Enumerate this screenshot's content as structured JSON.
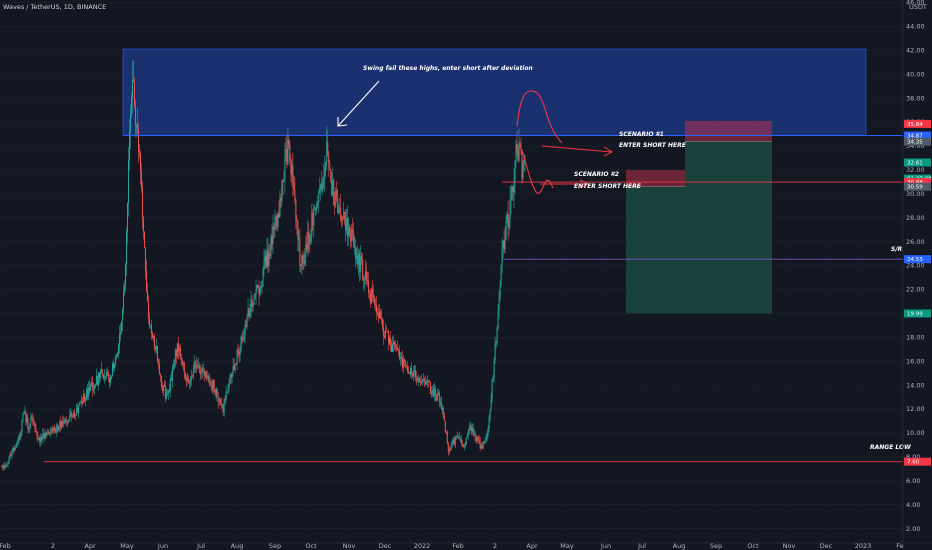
{
  "header": {
    "title": "Waves / TetherUS, 1D, BINANCE"
  },
  "chart_data": {
    "type": "candlestick",
    "currency": "USDT",
    "x_ticks": [
      "Feb",
      "2",
      "Apr",
      "May",
      "Jun",
      "Jul",
      "Aug",
      "Sep",
      "Oct",
      "Nov",
      "Dec",
      "2022",
      "Feb",
      "2",
      "Apr",
      "May",
      "Jun",
      "Jul",
      "Aug",
      "Sep",
      "Oct",
      "Nov",
      "Dec",
      "2023",
      "Fe"
    ],
    "y_ticks": [
      "2.00",
      "4.00",
      "6.00",
      "8.00",
      "10.00",
      "12.00",
      "14.00",
      "16.00",
      "18.00",
      "20.00",
      "22.00",
      "24.00",
      "26.00",
      "28.00",
      "30.00",
      "32.00",
      "34.00",
      "36.00",
      "38.00",
      "40.00",
      "42.00",
      "44.00",
      "46.00"
    ],
    "ylim": [
      0.8,
      46.2
    ],
    "price_path": [
      [
        0,
        7.2
      ],
      [
        6,
        7.6
      ],
      [
        12,
        8.8
      ],
      [
        18,
        10.0
      ],
      [
        22,
        12.0
      ],
      [
        26,
        10.5
      ],
      [
        30,
        11.2
      ],
      [
        36,
        9.2
      ],
      [
        42,
        9.8
      ],
      [
        48,
        10.2
      ],
      [
        56,
        10.5
      ],
      [
        64,
        11.0
      ],
      [
        70,
        11.5
      ],
      [
        76,
        12.0
      ],
      [
        84,
        13.2
      ],
      [
        92,
        14.0
      ],
      [
        100,
        15.0
      ],
      [
        108,
        14.5
      ],
      [
        114,
        16.0
      ],
      [
        120,
        19.0
      ],
      [
        124,
        24.0
      ],
      [
        128,
        36.0
      ],
      [
        131,
        40.5
      ],
      [
        134,
        36.0
      ],
      [
        138,
        33.0
      ],
      [
        142,
        27.0
      ],
      [
        146,
        21.0
      ],
      [
        150,
        18.0
      ],
      [
        156,
        16.5
      ],
      [
        160,
        14.0
      ],
      [
        166,
        13.0
      ],
      [
        172,
        15.5
      ],
      [
        176,
        17.5
      ],
      [
        182,
        15.5
      ],
      [
        188,
        14.0
      ],
      [
        194,
        16.0
      ],
      [
        200,
        15.0
      ],
      [
        206,
        14.5
      ],
      [
        212,
        14.0
      ],
      [
        218,
        12.8
      ],
      [
        222,
        12.0
      ],
      [
        228,
        14.5
      ],
      [
        234,
        16.0
      ],
      [
        240,
        17.5
      ],
      [
        246,
        19.5
      ],
      [
        252,
        21.0
      ],
      [
        258,
        22.0
      ],
      [
        264,
        24.0
      ],
      [
        270,
        25.5
      ],
      [
        276,
        28.0
      ],
      [
        280,
        30.0
      ],
      [
        284,
        33.0
      ],
      [
        288,
        34.0
      ],
      [
        292,
        31.0
      ],
      [
        296,
        27.0
      ],
      [
        300,
        24.0
      ],
      [
        304,
        25.0
      ],
      [
        310,
        27.0
      ],
      [
        316,
        30.0
      ],
      [
        322,
        31.0
      ],
      [
        326,
        34.0
      ],
      [
        330,
        31.0
      ],
      [
        336,
        29.0
      ],
      [
        342,
        28.0
      ],
      [
        348,
        27.0
      ],
      [
        354,
        25.5
      ],
      [
        360,
        24.0
      ],
      [
        366,
        22.5
      ],
      [
        372,
        21.0
      ],
      [
        378,
        20.0
      ],
      [
        384,
        18.5
      ],
      [
        390,
        17.5
      ],
      [
        396,
        16.5
      ],
      [
        402,
        16.0
      ],
      [
        408,
        15.5
      ],
      [
        414,
        15.0
      ],
      [
        420,
        14.5
      ],
      [
        426,
        14.0
      ],
      [
        432,
        13.5
      ],
      [
        438,
        13.0
      ],
      [
        444,
        11.0
      ],
      [
        448,
        8.5
      ],
      [
        452,
        9.0
      ],
      [
        458,
        9.8
      ],
      [
        464,
        9.0
      ],
      [
        470,
        10.5
      ],
      [
        476,
        9.5
      ],
      [
        482,
        8.8
      ],
      [
        486,
        9.5
      ],
      [
        490,
        12.0
      ],
      [
        494,
        16.0
      ],
      [
        498,
        20.0
      ],
      [
        502,
        25.0
      ],
      [
        506,
        27.0
      ],
      [
        510,
        29.0
      ],
      [
        513,
        31.0
      ],
      [
        516,
        34.0
      ],
      [
        519,
        33.5
      ],
      [
        522,
        32.0
      ],
      [
        525,
        32.5
      ]
    ],
    "horizontal_levels": [
      {
        "price": 34.87,
        "color": "#2962ff",
        "label": "34.87"
      },
      {
        "price": 30.98,
        "color": "#f23645",
        "label": "30.98"
      },
      {
        "price": 24.53,
        "color": "#7e57c2",
        "label": "24.53",
        "text": "S/R"
      },
      {
        "price": 7.6,
        "color": "#f23645",
        "label": "7.60",
        "text": "RANGE LOW"
      }
    ],
    "supply_zone": {
      "from_date_index": 123,
      "to_date_index": 866,
      "price_low": 34.87,
      "price_high": 42.1,
      "color": "#1e3a8a"
    },
    "positions": [
      {
        "name": "scenario-2",
        "stop_high": 31.98,
        "entry": 30.59,
        "target": 19.99
      },
      {
        "name": "scenario-1",
        "stop_high": 36.1,
        "entry": 34.35,
        "target": 19.99
      }
    ],
    "price_tags": [
      {
        "price": 35.84,
        "label": "35.84",
        "color": "#f23645"
      },
      {
        "price": 34.87,
        "label": "34.87",
        "color": "#2962ff"
      },
      {
        "price": 34.35,
        "label": "34.35",
        "color": "#4f5b66"
      },
      {
        "price": 32.61,
        "label": "32.61",
        "color": "#089981"
      },
      {
        "price": 31.27,
        "label": "01:27:08",
        "color": "#089981"
      },
      {
        "price": 30.98,
        "label": "30.98",
        "color": "#f23645"
      },
      {
        "price": 30.59,
        "label": "30.59",
        "color": "#4f5b66"
      },
      {
        "price": 24.53,
        "label": "24.53",
        "color": "#2962ff"
      },
      {
        "price": 19.99,
        "label": "19.99",
        "color": "#089981"
      },
      {
        "price": 7.6,
        "label": "7.60",
        "color": "#f23645"
      }
    ],
    "annotations": [
      {
        "text": "Swing fail these highs, enter short after deviation"
      },
      {
        "text": "SCENARIO #1"
      },
      {
        "text": "ENTER SHORT HERE"
      },
      {
        "text": "SCENARIO #2"
      },
      {
        "text": "ENTER SHORT HERE"
      },
      {
        "text": "S/R"
      },
      {
        "text": "RANGE LOW"
      }
    ]
  }
}
